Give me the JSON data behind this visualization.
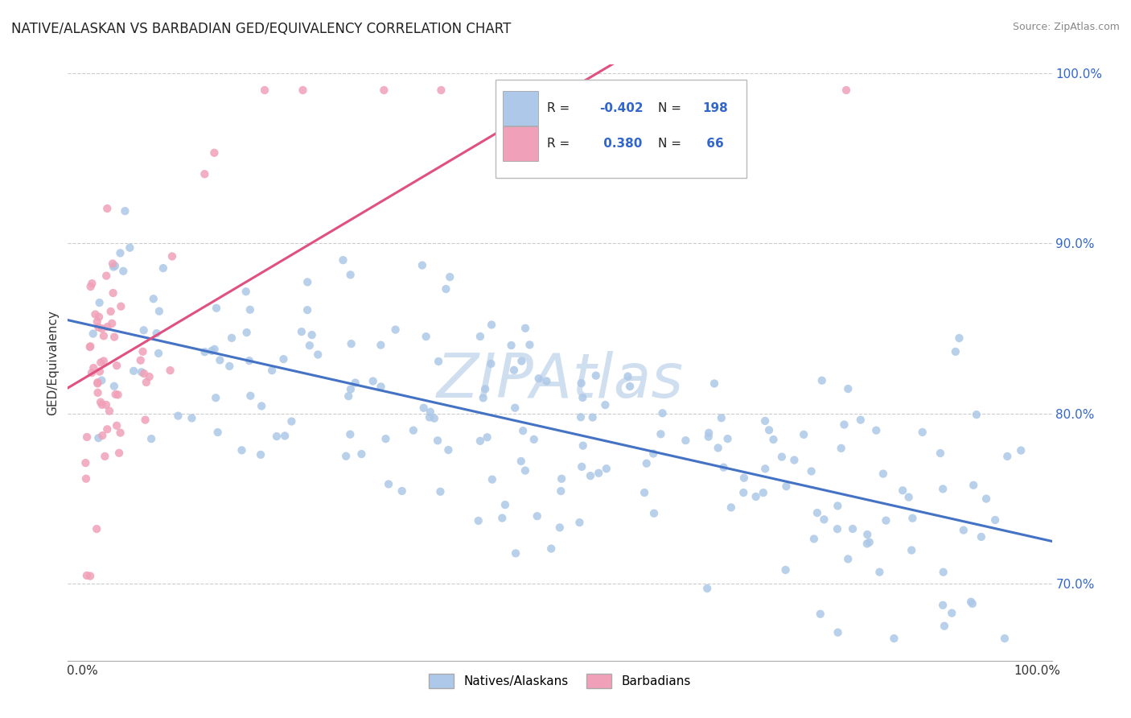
{
  "title": "NATIVE/ALASKAN VS BARBADIAN GED/EQUIVALENCY CORRELATION CHART",
  "source": "Source: ZipAtlas.com",
  "ylabel": "GED/Equivalency",
  "legend_label1": "Natives/Alaskans",
  "legend_label2": "Barbadians",
  "r1": -0.402,
  "n1": 198,
  "r2": 0.38,
  "n2": 66,
  "color_blue": "#adc8e8",
  "color_pink": "#f0a0b8",
  "color_blue_line": "#4472c4",
  "color_pink_line": "#e05080",
  "color_r_value": "#3366cc",
  "ylim_min": 0.655,
  "ylim_max": 1.005,
  "xlim_min": -0.015,
  "xlim_max": 1.015,
  "yticks": [
    0.7,
    0.8,
    0.9,
    1.0
  ],
  "ytick_labels": [
    "70.0%",
    "80.0%",
    "90.0%",
    "100.0%"
  ],
  "xtick_left": "0.0%",
  "xtick_right": "100.0%",
  "grid_color": "#cccccc",
  "background_color": "#ffffff",
  "title_fontsize": 12,
  "watermark_color": "#d0dff0",
  "watermark_fontsize": 55
}
